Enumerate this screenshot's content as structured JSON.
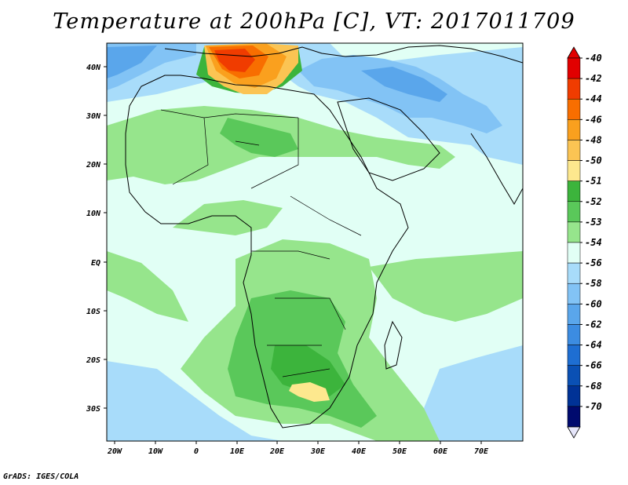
{
  "title": "Temperature at 200hPa [C], VT: 2017011709",
  "credit": "GrADS: IGES/COLA",
  "map": {
    "lat_labels": [
      "40N",
      "30N",
      "20N",
      "10N",
      "EQ",
      "10S",
      "20S",
      "30S"
    ],
    "lon_labels": [
      "20W",
      "10W",
      "0",
      "10E",
      "20E",
      "30E",
      "40E",
      "50E",
      "60E",
      "70E"
    ]
  },
  "colorbar": {
    "labels": [
      "-40",
      "-42",
      "-44",
      "-46",
      "-48",
      "-50",
      "-51",
      "-52",
      "-53",
      "-54",
      "-56",
      "-58",
      "-60",
      "-62",
      "-64",
      "-66",
      "-68",
      "-70"
    ],
    "colors": [
      "#e10000",
      "#f03c00",
      "#f86e00",
      "#faa01e",
      "#fbc453",
      "#fde88e",
      "#3cb43c",
      "#5ac85a",
      "#96e58c",
      "#e1fff5",
      "#a8dcfa",
      "#82c3f5",
      "#5aa6eb",
      "#3c8ce1",
      "#1e6ed2",
      "#0a50b4",
      "#003296",
      "#000a6e"
    ]
  },
  "colors": {
    "ocean_default": "#e1fff5",
    "map_border": "#000000"
  }
}
